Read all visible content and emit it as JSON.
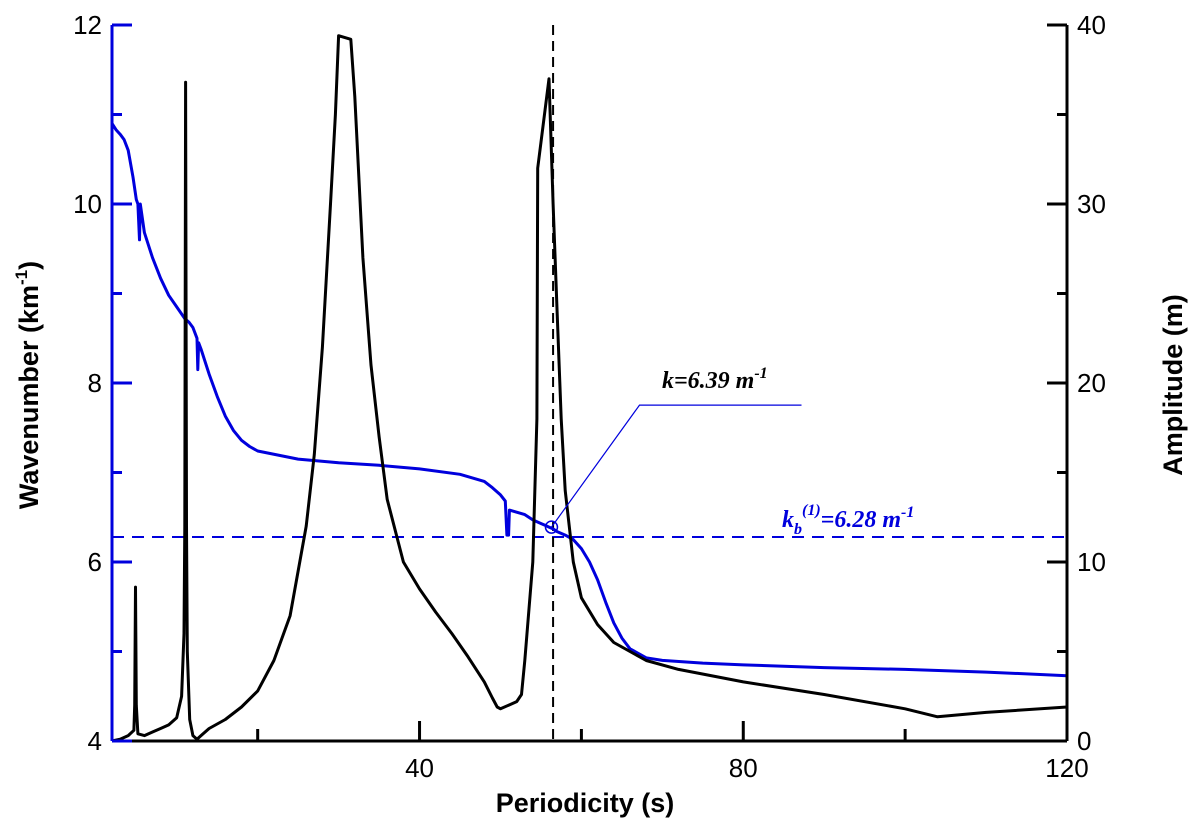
{
  "chart_data": {
    "type": "line",
    "xlabel": "Periodicity (s)",
    "ylabel_left": "Wavenumber (km",
    "ylabel_left_sup": "-1",
    "ylabel_left_close": ")",
    "ylabel_right": "Amplitude (m)",
    "xlim": [
      2,
      120
    ],
    "ylim_left": [
      4,
      12
    ],
    "ylim_right": [
      0,
      40
    ],
    "x_ticks": [
      "40",
      "80",
      "120"
    ],
    "y_left_ticks": [
      "4",
      "6",
      "8",
      "10",
      "12"
    ],
    "y_right_ticks": [
      "0",
      "10",
      "20",
      "30",
      "40"
    ],
    "colors": {
      "wavenumber": "#0000dd",
      "amplitude": "#000000",
      "reference": "#0000dd",
      "resonance": "#000000"
    },
    "series": [
      {
        "axis": "left",
        "color": "#0000dd",
        "values": [
          [
            2,
            10.9
          ],
          [
            2.5,
            10.83
          ],
          [
            3,
            10.78
          ],
          [
            3.5,
            10.72
          ],
          [
            4,
            10.6
          ],
          [
            4.6,
            10.3
          ],
          [
            5,
            10.05
          ],
          [
            5.2,
            10.0
          ],
          [
            5.4,
            9.6
          ],
          [
            5.5,
            10.0
          ],
          [
            6,
            9.68
          ],
          [
            7,
            9.4
          ],
          [
            8,
            9.17
          ],
          [
            9,
            8.98
          ],
          [
            10,
            8.85
          ],
          [
            11,
            8.72
          ],
          [
            11.5,
            8.68
          ],
          [
            12,
            8.62
          ],
          [
            12.5,
            8.5
          ],
          [
            12.6,
            8.15
          ],
          [
            12.7,
            8.45
          ],
          [
            13,
            8.38
          ],
          [
            14,
            8.1
          ],
          [
            15,
            7.85
          ],
          [
            16,
            7.63
          ],
          [
            17,
            7.47
          ],
          [
            18,
            7.36
          ],
          [
            19,
            7.29
          ],
          [
            20,
            7.24
          ],
          [
            25,
            7.15
          ],
          [
            30,
            7.11
          ],
          [
            35,
            7.08
          ],
          [
            40,
            7.04
          ],
          [
            45,
            6.98
          ],
          [
            48,
            6.9
          ],
          [
            49,
            6.83
          ],
          [
            50,
            6.75
          ],
          [
            50.6,
            6.68
          ],
          [
            50.8,
            6.3
          ],
          [
            51.0,
            6.3
          ],
          [
            51.1,
            6.58
          ],
          [
            53,
            6.53
          ],
          [
            54,
            6.47
          ],
          [
            55,
            6.43
          ],
          [
            55.5,
            6.41
          ],
          [
            56,
            6.39
          ],
          [
            56.5,
            6.37
          ],
          [
            57,
            6.34
          ],
          [
            58,
            6.3
          ],
          [
            59,
            6.25
          ],
          [
            60,
            6.15
          ],
          [
            61,
            6.0
          ],
          [
            62,
            5.8
          ],
          [
            63,
            5.55
          ],
          [
            64,
            5.32
          ],
          [
            65,
            5.15
          ],
          [
            66,
            5.03
          ],
          [
            68,
            4.93
          ],
          [
            70,
            4.9
          ],
          [
            75,
            4.87
          ],
          [
            80,
            4.85
          ],
          [
            90,
            4.82
          ],
          [
            100,
            4.8
          ],
          [
            110,
            4.77
          ],
          [
            120,
            4.73
          ]
        ]
      },
      {
        "axis": "right",
        "color": "#000000",
        "values": [
          [
            2,
            0
          ],
          [
            3,
            0.1
          ],
          [
            4,
            0.3
          ],
          [
            4.7,
            0.6
          ],
          [
            4.8,
            2
          ],
          [
            4.9,
            8.6
          ],
          [
            5.0,
            2
          ],
          [
            5.2,
            0.4
          ],
          [
            6,
            0.3
          ],
          [
            7,
            0.5
          ],
          [
            8,
            0.7
          ],
          [
            9,
            0.9
          ],
          [
            10,
            1.3
          ],
          [
            10.6,
            2.5
          ],
          [
            10.9,
            6
          ],
          [
            11.0,
            12
          ],
          [
            11.1,
            36.8
          ],
          [
            11.2,
            12
          ],
          [
            11.3,
            5
          ],
          [
            11.6,
            1.2
          ],
          [
            12,
            0.3
          ],
          [
            12.5,
            0.1
          ],
          [
            13,
            0.3
          ],
          [
            14,
            0.7
          ],
          [
            16,
            1.2
          ],
          [
            18,
            1.9
          ],
          [
            20,
            2.8
          ],
          [
            22,
            4.5
          ],
          [
            24,
            7.0
          ],
          [
            26,
            12.0
          ],
          [
            27,
            16.0
          ],
          [
            28,
            22.0
          ],
          [
            29,
            30.0
          ],
          [
            29.6,
            35.0
          ],
          [
            30,
            39.4
          ],
          [
            31.5,
            39.2
          ],
          [
            32,
            36.0
          ],
          [
            33,
            27.0
          ],
          [
            34,
            21.0
          ],
          [
            35,
            17.0
          ],
          [
            36,
            13.5
          ],
          [
            38,
            10.0
          ],
          [
            40,
            8.5
          ],
          [
            42,
            7.2
          ],
          [
            44,
            6.0
          ],
          [
            46,
            4.7
          ],
          [
            48,
            3.3
          ],
          [
            49,
            2.4
          ],
          [
            49.6,
            1.9
          ],
          [
            50,
            1.8
          ],
          [
            51,
            2.0
          ],
          [
            52,
            2.2
          ],
          [
            52.6,
            2.6
          ],
          [
            53,
            4.5
          ],
          [
            54,
            10.0
          ],
          [
            54.5,
            18.0
          ],
          [
            54.6,
            32.0
          ],
          [
            56,
            37.0
          ],
          [
            56.5,
            30.0
          ],
          [
            57,
            24.0
          ],
          [
            57.5,
            18.0
          ],
          [
            58,
            14.0
          ],
          [
            59,
            10.0
          ],
          [
            60,
            8.0
          ],
          [
            62,
            6.5
          ],
          [
            64,
            5.5
          ],
          [
            68,
            4.5
          ],
          [
            72,
            4.0
          ],
          [
            80,
            3.3
          ],
          [
            90,
            2.6
          ],
          [
            100,
            1.8
          ],
          [
            104,
            1.35
          ],
          [
            110,
            1.6
          ],
          [
            120,
            1.9
          ]
        ]
      }
    ],
    "reference_line": {
      "y": 6.28,
      "label_main": "k",
      "label_sub": "b",
      "label_sup": "(1)",
      "label_rest": "=6.28 m",
      "label_unit_sup": "-1"
    },
    "vertical_line": {
      "x": 56.5
    },
    "marker": {
      "x": 56.3,
      "y": 6.39,
      "label_main": "k=6.39 m",
      "label_sup": "-1"
    }
  }
}
